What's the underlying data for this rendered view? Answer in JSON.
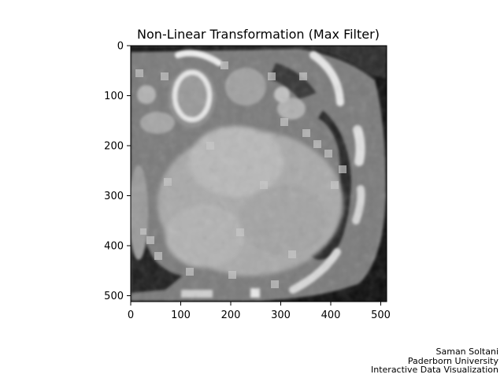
{
  "figure": {
    "title": "Non-Linear Transformation (Max Filter)",
    "image_description": "Grayscale axial CT slice processed with a max filter (blocky bright patches)",
    "colors": {
      "background": "#ffffff",
      "axis": "#000000",
      "image_border": "#0c0c0c"
    }
  },
  "axes": {
    "x_ticks": [
      "0",
      "100",
      "200",
      "300",
      "400",
      "500"
    ],
    "y_ticks": [
      "0",
      "100",
      "200",
      "300",
      "400",
      "500"
    ],
    "x_range": [
      0,
      512
    ],
    "y_range": [
      0,
      512
    ]
  },
  "credits": {
    "author": "Saman Soltani",
    "university": "Paderborn University",
    "course": "Interactive Data Visualization"
  }
}
